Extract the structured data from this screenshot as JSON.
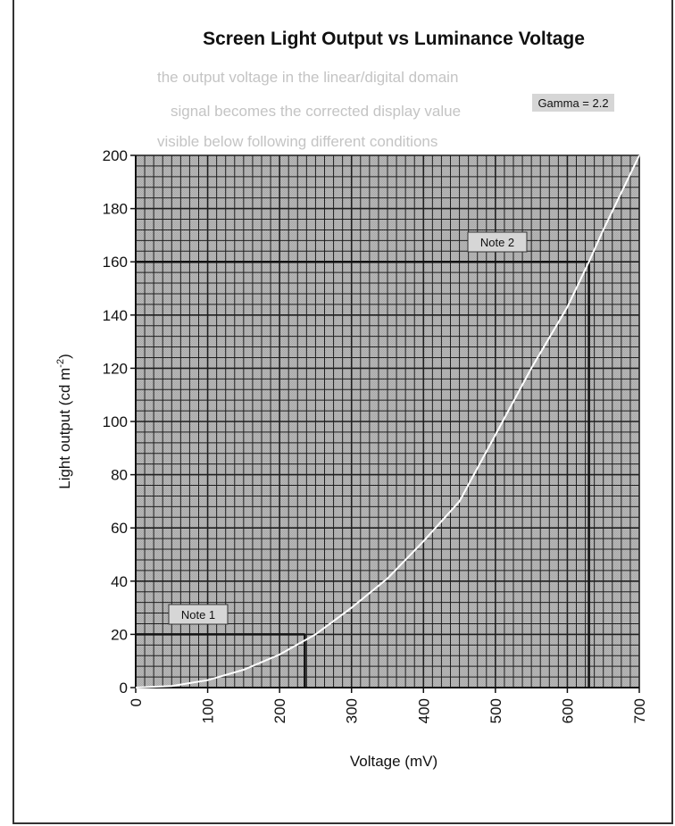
{
  "chart_data": {
    "type": "line",
    "title": "Screen Light Output vs Luminance Voltage",
    "xlabel": "Voltage (mV)",
    "ylabel": "Light output (cd m",
    "ylabel_sup": "-2",
    "ylabel_close": ")",
    "xlim": [
      0,
      700
    ],
    "ylim": [
      0,
      200
    ],
    "x_ticks": [
      0,
      100,
      200,
      300,
      400,
      500,
      600,
      700
    ],
    "y_ticks": [
      0,
      20,
      40,
      60,
      80,
      100,
      120,
      140,
      160,
      180,
      200
    ],
    "grid": true,
    "gamma": 2.2,
    "series": [
      {
        "name": "",
        "x": [
          0,
          50,
          100,
          150,
          200,
          250,
          300,
          350,
          400,
          450,
          500,
          550,
          600,
          630,
          650,
          700
        ],
        "y": [
          0,
          0.6,
          2.8,
          6.7,
          12.4,
          20,
          30,
          41,
          55,
          70,
          95,
          120,
          143,
          160,
          172,
          200
        ]
      }
    ],
    "annotations": [
      {
        "label": "Gamma = 2.2"
      },
      {
        "label": "Note 1",
        "x": 235,
        "y": 20
      },
      {
        "label": "Note 2",
        "x": 630,
        "y": 160
      }
    ]
  },
  "ghost_lines": [
    "the output voltage in the linear/digital domain",
    "signal becomes the corrected display value",
    "visible below following different conditions"
  ],
  "colors": {
    "plot_bg": "#b9b9b9",
    "grid": "#1e1e1e",
    "curve": "#ffffff",
    "note_line": "#111111"
  }
}
